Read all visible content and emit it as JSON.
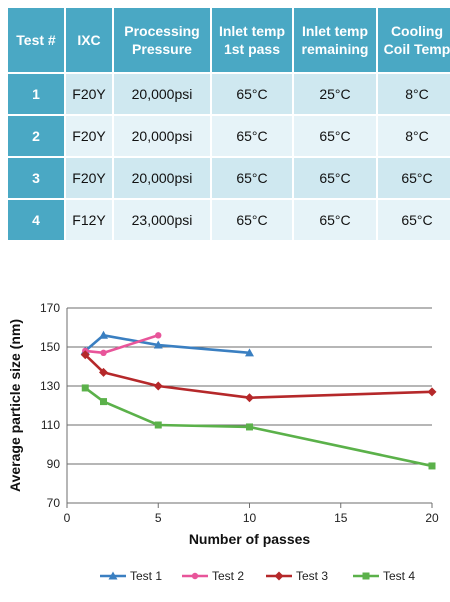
{
  "table": {
    "headers": [
      [
        "Test #"
      ],
      [
        "IXC"
      ],
      [
        "Processing",
        "Pressure"
      ],
      [
        "Inlet temp",
        "1st pass"
      ],
      [
        "Inlet temp",
        "remaining"
      ],
      [
        "Cooling",
        "Coil Temp"
      ]
    ],
    "rows": [
      [
        "1",
        "F20Y",
        "20,000psi",
        "65°C",
        "25°C",
        "8°C"
      ],
      [
        "2",
        "F20Y",
        "20,000psi",
        "65°C",
        "65°C",
        "8°C"
      ],
      [
        "3",
        "F20Y",
        "20,000psi",
        "65°C",
        "65°C",
        "65°C"
      ],
      [
        "4",
        "F12Y",
        "23,000psi",
        "65°C",
        "65°C",
        "65°C"
      ]
    ],
    "colors": {
      "header": "#4aa8c4",
      "row_odd": "#cfe8f0",
      "row_even": "#e6f3f8"
    }
  },
  "chart_data": {
    "type": "line",
    "xlabel": "Number of passes",
    "ylabel": "Average particle size (nm)",
    "xlim": [
      0,
      20
    ],
    "ylim": [
      70,
      170
    ],
    "xticks": [
      0,
      5,
      10,
      15,
      20
    ],
    "yticks": [
      70,
      90,
      110,
      130,
      150,
      170
    ],
    "grid": "horizontal",
    "legend_position": "bottom",
    "series": [
      {
        "name": "Test 1",
        "color": "#3a7fc1",
        "marker": "triangle",
        "x": [
          1,
          2,
          5,
          10
        ],
        "y": [
          148,
          156,
          151,
          147
        ]
      },
      {
        "name": "Test 2",
        "color": "#e8559a",
        "marker": "circle",
        "x": [
          1,
          2,
          5
        ],
        "y": [
          148,
          147,
          156
        ]
      },
      {
        "name": "Test 3",
        "color": "#b5282a",
        "marker": "diamond",
        "x": [
          1,
          2,
          5,
          10,
          20
        ],
        "y": [
          146,
          137,
          130,
          124,
          127
        ]
      },
      {
        "name": "Test 4",
        "color": "#5bb14a",
        "marker": "square",
        "x": [
          1,
          2,
          5,
          10,
          20
        ],
        "y": [
          129,
          122,
          110,
          109,
          89
        ]
      }
    ]
  }
}
